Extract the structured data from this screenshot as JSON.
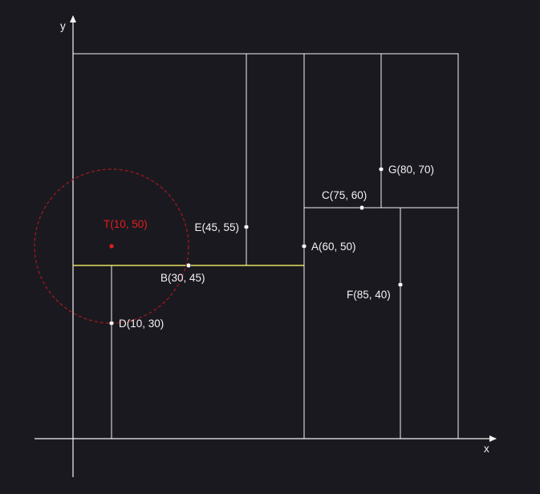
{
  "axes": {
    "x_label": "x",
    "y_label": "y",
    "x_range": [
      0,
      110
    ],
    "y_range": [
      0,
      100
    ]
  },
  "region": {
    "x": [
      0,
      100
    ],
    "y": [
      0,
      100
    ]
  },
  "colors": {
    "background": "#1b1920",
    "lines": "#f2f2f2",
    "highlight_segment": "#e4e45a",
    "target": "#e11e1e",
    "search_circle": "#9b1b1b"
  },
  "partition_segments": [
    {
      "name": "split-line-b",
      "from": [
        0,
        45
      ],
      "to": [
        60,
        45
      ],
      "highlight": true
    },
    {
      "name": "split-line-a",
      "from": [
        60,
        0
      ],
      "to": [
        60,
        100
      ]
    },
    {
      "name": "split-line-d",
      "from": [
        10,
        0
      ],
      "to": [
        10,
        45
      ]
    },
    {
      "name": "split-line-e",
      "from": [
        45,
        45
      ],
      "to": [
        45,
        100
      ]
    },
    {
      "name": "split-line-c",
      "from": [
        60,
        60
      ],
      "to": [
        100,
        60
      ]
    },
    {
      "name": "split-line-f",
      "from": [
        85,
        0
      ],
      "to": [
        85,
        60
      ]
    },
    {
      "name": "split-line-g",
      "from": [
        80,
        60
      ],
      "to": [
        80,
        100
      ]
    }
  ],
  "points": [
    {
      "name": "point-a",
      "label": "A(60, 50)",
      "x": 60,
      "y": 50,
      "anchor": "right"
    },
    {
      "name": "point-b",
      "label": "B(30, 45)",
      "x": 30,
      "y": 45,
      "anchor": "below"
    },
    {
      "name": "point-c",
      "label": "C(75, 60)",
      "x": 75,
      "y": 60,
      "anchor": "above-left"
    },
    {
      "name": "point-d",
      "label": "D(10, 30)",
      "x": 10,
      "y": 30,
      "anchor": "right"
    },
    {
      "name": "point-e",
      "label": "E(45, 55)",
      "x": 45,
      "y": 55,
      "anchor": "left"
    },
    {
      "name": "point-f",
      "label": "F(85, 40)",
      "x": 85,
      "y": 40,
      "anchor": "below-left"
    },
    {
      "name": "point-g",
      "label": "G(80, 70)",
      "x": 80,
      "y": 70,
      "anchor": "right"
    }
  ],
  "target": {
    "label": "T(10, 50)",
    "x": 10,
    "y": 50,
    "radius": 20
  }
}
